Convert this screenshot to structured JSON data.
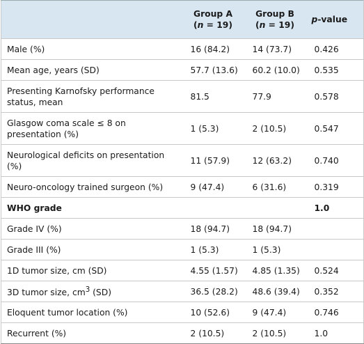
{
  "table": {
    "header": {
      "group_a": {
        "name": "Group A",
        "n_open": "(",
        "n_symbol": "n",
        "n_rest": " = 19)"
      },
      "group_b": {
        "name": "Group B",
        "n_open": "(",
        "n_symbol": "n",
        "n_rest": " = 19)"
      },
      "p_value": {
        "symbol": "p",
        "rest": "-value"
      }
    },
    "rows": [
      [
        "Male (%)",
        "16 (84.2)",
        "14 (73.7)",
        "0.426"
      ],
      [
        "Mean age, years (SD)",
        "57.7 (13.6)",
        "60.2 (10.0)",
        "0.535"
      ],
      [
        "Presenting Karnofsky performance status, mean",
        "81.5",
        "77.9",
        "0.578"
      ],
      [
        "Glasgow coma scale ≤ 8 on presentation (%)",
        "1 (5.3)",
        "2 (10.5)",
        "0.547"
      ],
      [
        "Neurological deficits on presentation (%)",
        "11 (57.9)",
        "12 (63.2)",
        "0.740"
      ],
      [
        "Neuro-oncology trained surgeon (%)",
        "9 (47.4)",
        "6 (31.6)",
        "0.319"
      ],
      [
        "WHO grade",
        null,
        null,
        "1.0"
      ],
      [
        "Grade IV (%)",
        "18 (94.7)",
        "18 (94.7)",
        null
      ],
      [
        "Grade III (%)",
        "1 (5.3)",
        "1 (5.3)",
        null
      ],
      [
        "1D tumor size, cm (SD)",
        "4.55 (1.57)",
        "4.85 (1.35)",
        "0.524"
      ],
      [
        [
          "3D tumor size, cm",
          "3",
          " (SD)"
        ],
        "36.5 (28.2)",
        "48.6 (39.4)",
        "0.352"
      ],
      [
        "Eloquent tumor location (%)",
        "10 (52.6)",
        "9 (47.4)",
        "0.746"
      ],
      [
        "Recurrent (%)",
        "2 (10.5)",
        "2 (10.5)",
        "1.0"
      ]
    ]
  }
}
